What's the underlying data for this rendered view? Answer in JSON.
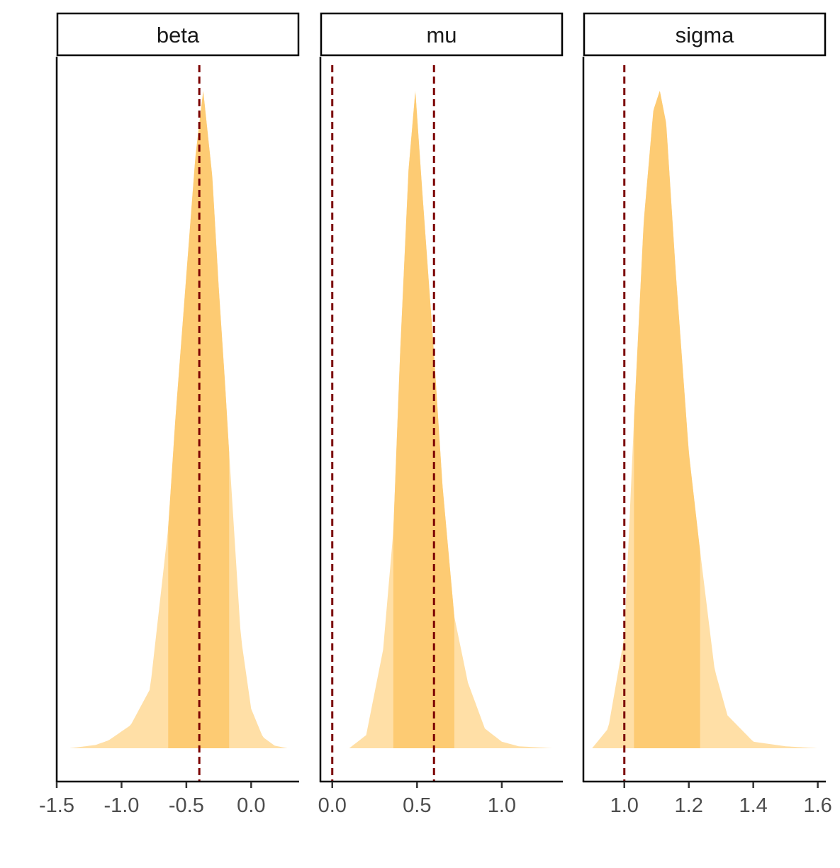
{
  "chart_data": {
    "type": "area",
    "title": "",
    "panels": [
      {
        "name": "beta",
        "xlim": [
          -1.5,
          0.37
        ],
        "ticks": [
          "-1.5",
          "-1.0",
          "-0.5",
          "0.0"
        ],
        "tick_values": [
          -1.5,
          -1.0,
          -0.5,
          0.0
        ],
        "true_values": [
          -0.4
        ],
        "inner_interval": [
          -0.64,
          -0.17
        ],
        "density_x": [
          -1.4,
          -1.2,
          -1.1,
          -0.93,
          -0.78,
          -0.64,
          -0.585,
          -0.5,
          -0.43,
          -0.37,
          -0.3,
          -0.25,
          -0.2,
          -0.17,
          -0.08,
          0.0,
          0.09,
          0.18,
          0.28
        ],
        "density_y": [
          0,
          0.005,
          0.012,
          0.035,
          0.09,
          0.335,
          0.5,
          0.72,
          0.9,
          1.0,
          0.87,
          0.7,
          0.55,
          0.45,
          0.17,
          0.06,
          0.017,
          0.004,
          0
        ]
      },
      {
        "name": "mu",
        "xlim": [
          -0.07,
          1.36
        ],
        "ticks": [
          "0.0",
          "0.5",
          "1.0"
        ],
        "tick_values": [
          0.0,
          0.5,
          1.0
        ],
        "true_values": [
          0.0,
          0.6
        ],
        "inner_interval": [
          0.36,
          0.72
        ],
        "density_x": [
          0.1,
          0.2,
          0.3,
          0.36,
          0.4,
          0.45,
          0.49,
          0.53,
          0.6,
          0.65,
          0.72,
          0.8,
          0.9,
          1.0,
          1.1,
          1.3
        ],
        "density_y": [
          0,
          0.02,
          0.15,
          0.33,
          0.6,
          0.88,
          1.0,
          0.85,
          0.6,
          0.4,
          0.2,
          0.1,
          0.03,
          0.01,
          0.003,
          0
        ]
      },
      {
        "name": "sigma",
        "xlim": [
          0.873,
          1.625
        ],
        "ticks": [
          "1.0",
          "1.2",
          "1.4",
          "1.6"
        ],
        "tick_values": [
          1.0,
          1.2,
          1.4,
          1.6
        ],
        "true_values": [
          1.0
        ],
        "inner_interval": [
          1.03,
          1.235
        ],
        "density_x": [
          0.9,
          0.95,
          1.0,
          1.03,
          1.06,
          1.09,
          1.11,
          1.13,
          1.16,
          1.2,
          1.235,
          1.28,
          1.32,
          1.36,
          1.4,
          1.5,
          1.6
        ],
        "density_y": [
          0,
          0.03,
          0.17,
          0.5,
          0.8,
          0.97,
          1.0,
          0.95,
          0.72,
          0.45,
          0.3,
          0.12,
          0.05,
          0.03,
          0.01,
          0.003,
          0
        ]
      }
    ],
    "xlabel": "",
    "ylabel": "",
    "grid": false,
    "colors": {
      "outer": "#FFDFA6",
      "inner": "#FDCB73",
      "true_line": "#7B0000",
      "axis_text": "#4D4D4D"
    }
  }
}
